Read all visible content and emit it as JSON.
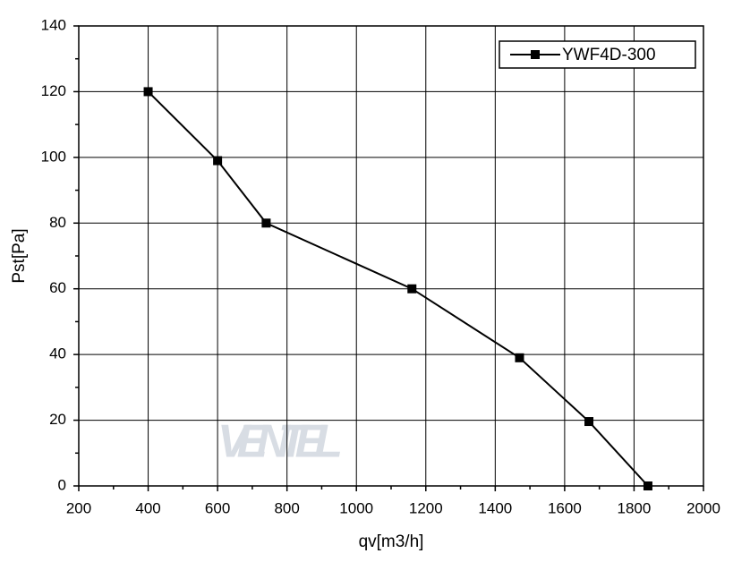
{
  "chart_data": {
    "type": "line",
    "x_label": "qv[m3/h]",
    "y_label": "Pst[Pa]",
    "watermark": "VENTEL",
    "series": [
      {
        "name": "YWF4D-300",
        "color": "#000000",
        "x": [
          400,
          600,
          740,
          1160,
          1470,
          1670,
          1840
        ],
        "values": [
          120,
          99,
          80,
          60,
          39,
          19.6,
          0
        ]
      }
    ],
    "xlim": [
      200,
      2000
    ],
    "xticks": [
      200,
      400,
      600,
      800,
      1000,
      1200,
      1400,
      1600,
      1800,
      2000
    ],
    "ylim": [
      0,
      140
    ],
    "yticks": [
      0,
      20,
      40,
      60,
      80,
      100,
      120,
      140
    ],
    "grid": true,
    "legend": "top-right"
  }
}
